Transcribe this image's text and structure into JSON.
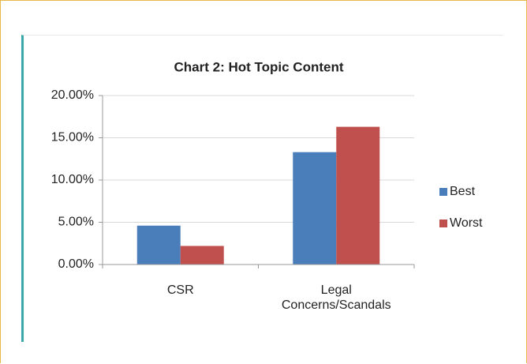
{
  "chart_data": {
    "type": "bar",
    "title": "Chart 2: Hot Topic Content",
    "categories": [
      "CSR",
      "Legal Concerns/Scandals"
    ],
    "series": [
      {
        "name": "Best",
        "color": "#4a7ebb",
        "values": [
          4.6,
          13.3
        ]
      },
      {
        "name": "Worst",
        "color": "#c0504d",
        "values": [
          2.2,
          16.3
        ]
      }
    ],
    "ylim": [
      0,
      20
    ],
    "yticks": [
      {
        "value": 0,
        "label": "0.00%"
      },
      {
        "value": 5,
        "label": "5.00%"
      },
      {
        "value": 10,
        "label": "10.00%"
      },
      {
        "value": 15,
        "label": "15.00%"
      },
      {
        "value": 20,
        "label": "20.00%"
      }
    ],
    "grid": true,
    "legend": "right"
  }
}
